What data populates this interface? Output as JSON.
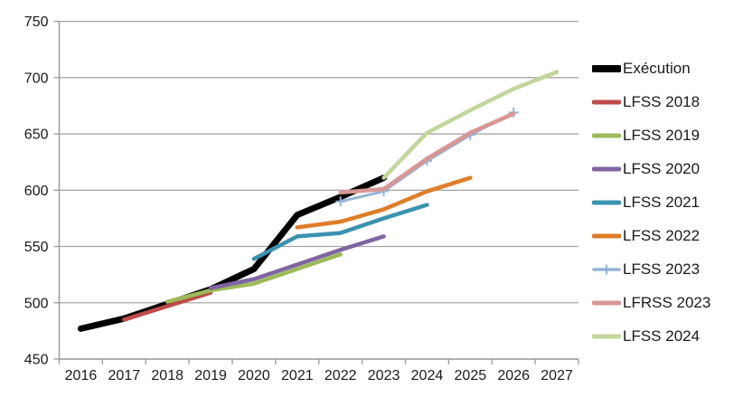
{
  "chart_data": {
    "type": "line",
    "title": "",
    "xlabel": "",
    "ylabel": "",
    "x_labels": [
      "2016",
      "2017",
      "2018",
      "2019",
      "2020",
      "2021",
      "2022",
      "2023",
      "2024",
      "2025",
      "2026",
      "2027"
    ],
    "x_range": [
      2016,
      2027
    ],
    "y_ticks": [
      450,
      500,
      550,
      600,
      650,
      700,
      750
    ],
    "ylim": [
      450,
      750
    ],
    "grid": true,
    "legend_position": "right",
    "grid_color": "#A6A6A6",
    "axis_color": "#9C9C9C",
    "text_color": "#1a1a1a",
    "series": [
      {
        "name": "Exécution",
        "color": "#000000",
        "width": 7,
        "marker": "none",
        "years": [
          2016,
          2017,
          2018,
          2019,
          2020,
          2021,
          2022,
          2023
        ],
        "values": [
          477,
          486,
          499,
          512,
          530,
          578,
          594,
          611
        ]
      },
      {
        "name": "LFSS 2018",
        "color": "#BE4B48",
        "width": 4.5,
        "marker": "none",
        "years": [
          2017,
          2018,
          2019
        ],
        "values": [
          485,
          497,
          509
        ]
      },
      {
        "name": "LFSS 2019",
        "color": "#9BBB59",
        "width": 4.5,
        "marker": "none",
        "years": [
          2018,
          2019,
          2020,
          2021,
          2022
        ],
        "values": [
          501,
          511,
          517,
          530,
          543
        ]
      },
      {
        "name": "LFSS 2020",
        "color": "#8064A2",
        "width": 4.5,
        "marker": "none",
        "years": [
          2019,
          2020,
          2021,
          2022,
          2023
        ],
        "values": [
          513,
          521,
          534,
          547,
          559
        ]
      },
      {
        "name": "LFSS 2021",
        "color": "#3A93B0",
        "width": 4.5,
        "marker": "none",
        "years": [
          2020,
          2021,
          2022,
          2023,
          2024
        ],
        "values": [
          539,
          559,
          562,
          575,
          587
        ]
      },
      {
        "name": "LFSS 2022",
        "color": "#E07D28",
        "width": 4.5,
        "marker": "none",
        "years": [
          2021,
          2022,
          2023,
          2024,
          2025
        ],
        "values": [
          567,
          572,
          583,
          599,
          611
        ]
      },
      {
        "name": "LFSS 2023",
        "color": "#95B3D7",
        "width": 3,
        "marker": "plus",
        "years": [
          2022,
          2023,
          2024,
          2025,
          2026
        ],
        "values": [
          590,
          599,
          626,
          649,
          669
        ]
      },
      {
        "name": "LFRSS 2023",
        "color": "#D99694",
        "width": 4.5,
        "marker": "none",
        "years": [
          2022,
          2023,
          2024,
          2025,
          2026
        ],
        "values": [
          598,
          601,
          628,
          651,
          668
        ]
      },
      {
        "name": "LFSS 2024",
        "color": "#C3D69B",
        "width": 4.5,
        "marker": "none",
        "years": [
          2023,
          2024,
          2025,
          2026,
          2027
        ],
        "values": [
          611,
          651,
          671,
          690,
          705
        ]
      }
    ]
  }
}
